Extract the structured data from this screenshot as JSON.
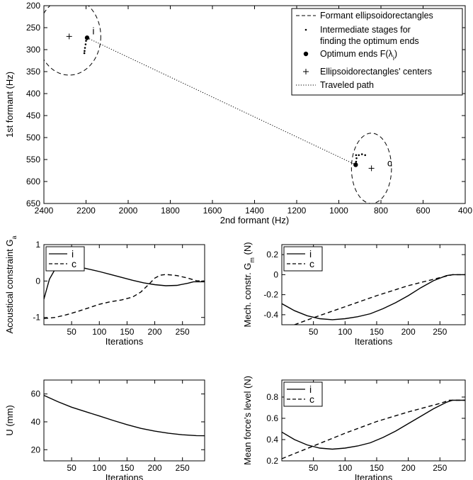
{
  "chart_data": [
    {
      "type": "line",
      "xlabel": "2nd  formant (Hz)",
      "ylabel": "1st  formant (Hz)",
      "xlim": [
        2400,
        400
      ],
      "ylim": [
        200,
        650
      ],
      "y_reversed": true,
      "x_ticks": [
        "2400",
        "2200",
        "2000",
        "1800",
        "1600",
        "1400",
        "1200",
        "1000",
        "800",
        "600",
        "400"
      ],
      "y_ticks": [
        "200",
        "250",
        "300",
        "350",
        "400",
        "450",
        "500",
        "550",
        "600",
        "650"
      ],
      "legend": {
        "placement": "top-right",
        "entries": [
          {
            "text": "Formant ellipsoidorectangles",
            "style": "dashed"
          },
          {
            "text": "Intermediate stages for",
            "text2": "finding the optimum ends",
            "style": "dot"
          },
          {
            "text": "Optimum ends F(λ",
            "sub": "i",
            "tail": ")",
            "style": "filled-circle"
          },
          {
            "text": "Ellipsoidorectangles' centers",
            "style": "plus"
          },
          {
            "text": "Traveled path",
            "style": "dotted"
          }
        ]
      },
      "annotations": [
        {
          "text": "i",
          "x": 2170,
          "y": 265
        },
        {
          "text": "c",
          "x": 770,
          "y": 565
        }
      ],
      "ellipses": [
        {
          "name": "i",
          "center": [
            2280,
            270
          ],
          "rx": 150,
          "ry": 88
        },
        {
          "name": "c",
          "center": [
            845,
            570
          ],
          "rx": 95,
          "ry": 80
        }
      ],
      "centers": [
        [
          2280,
          270
        ],
        [
          845,
          570
        ]
      ],
      "optimum_ends": [
        [
          2195,
          273
        ],
        [
          920,
          562
        ]
      ],
      "traveled_path": [
        [
          2195,
          273
        ],
        [
          920,
          562
        ]
      ],
      "intermediate_i": [
        [
          2195,
          273
        ],
        [
          2200,
          280
        ],
        [
          2202,
          288
        ],
        [
          2205,
          296
        ],
        [
          2207,
          303
        ],
        [
          2208,
          308
        ]
      ],
      "intermediate_c": [
        [
          920,
          562
        ],
        [
          918,
          555
        ],
        [
          916,
          547
        ],
        [
          918,
          540
        ],
        [
          905,
          540
        ],
        [
          890,
          538
        ],
        [
          875,
          540
        ]
      ]
    },
    {
      "type": "line",
      "xlabel": "Iterations",
      "ylabel": "Acoustical constraint G",
      "ylabel_sub": "a",
      "xlim": [
        0,
        290
      ],
      "ylim": [
        -1.2,
        1.0
      ],
      "x_ticks": [
        "50",
        "100",
        "150",
        "200",
        "250"
      ],
      "y_ticks": [
        "-1",
        "0",
        "1"
      ],
      "y_tick_values": [
        -1,
        0,
        1
      ],
      "legend": {
        "placement": "top-left",
        "entries": [
          {
            "text": "i",
            "style": "solid"
          },
          {
            "text": "c",
            "style": "dashed"
          }
        ]
      },
      "series": [
        {
          "name": "i",
          "style": "solid",
          "x": [
            0,
            10,
            20,
            30,
            40,
            60,
            80,
            100,
            120,
            140,
            160,
            180,
            200,
            220,
            240,
            260,
            270,
            280,
            290
          ],
          "y": [
            -0.5,
            0.05,
            0.32,
            0.42,
            0.44,
            0.4,
            0.33,
            0.26,
            0.18,
            0.1,
            0.02,
            -0.05,
            -0.1,
            -0.13,
            -0.12,
            -0.06,
            -0.02,
            -0.02,
            -0.02
          ]
        },
        {
          "name": "c",
          "style": "dashed",
          "x": [
            0,
            20,
            40,
            60,
            80,
            100,
            120,
            140,
            160,
            175,
            190,
            200,
            210,
            220,
            240,
            260,
            275,
            290
          ],
          "y": [
            -1.03,
            -1.0,
            -0.93,
            -0.84,
            -0.74,
            -0.64,
            -0.57,
            -0.52,
            -0.44,
            -0.3,
            -0.08,
            0.08,
            0.16,
            0.18,
            0.15,
            0.08,
            0.01,
            0.0
          ]
        }
      ]
    },
    {
      "type": "line",
      "xlabel": "Iterations",
      "ylabel": "Mech. constr. G",
      "ylabel_sub": "m",
      "ylabel_tail": " (N)",
      "xlim": [
        0,
        290
      ],
      "ylim": [
        -0.5,
        0.3
      ],
      "x_ticks": [
        "50",
        "100",
        "150",
        "200",
        "250"
      ],
      "y_ticks": [
        "-0.4",
        "-0.2",
        "0",
        "0.2"
      ],
      "y_tick_values": [
        -0.4,
        -0.2,
        0,
        0.2
      ],
      "legend": {
        "placement": "top-left",
        "entries": [
          {
            "text": "i",
            "style": "solid"
          },
          {
            "text": "c",
            "style": "dashed"
          }
        ]
      },
      "series": [
        {
          "name": "i",
          "style": "solid",
          "x": [
            0,
            20,
            40,
            60,
            80,
            100,
            120,
            140,
            160,
            180,
            200,
            220,
            240,
            260,
            270,
            280,
            290
          ],
          "y": [
            -0.29,
            -0.36,
            -0.41,
            -0.44,
            -0.45,
            -0.44,
            -0.42,
            -0.39,
            -0.34,
            -0.28,
            -0.21,
            -0.13,
            -0.06,
            -0.01,
            0.0,
            0.0,
            0.0
          ]
        },
        {
          "name": "c",
          "style": "dashed",
          "x": [
            20,
            50,
            100,
            150,
            200,
            250,
            270,
            290
          ],
          "y": [
            -0.5,
            -0.43,
            -0.32,
            -0.21,
            -0.11,
            -0.03,
            0.0,
            0.0
          ]
        }
      ]
    },
    {
      "type": "line",
      "xlabel": "Iterations",
      "ylabel": "U (mm)",
      "xlim": [
        0,
        290
      ],
      "ylim": [
        12,
        70
      ],
      "x_ticks": [
        "50",
        "100",
        "150",
        "200",
        "250"
      ],
      "y_ticks": [
        "20",
        "40",
        "60"
      ],
      "y_tick_values": [
        20,
        40,
        60
      ],
      "series": [
        {
          "name": "",
          "style": "solid",
          "x": [
            0,
            25,
            50,
            75,
            100,
            125,
            150,
            175,
            200,
            225,
            250,
            275,
            290
          ],
          "y": [
            59,
            54.5,
            50.5,
            47.3,
            44.2,
            41.0,
            38.0,
            35.3,
            33.3,
            31.8,
            30.7,
            30.1,
            30.0
          ]
        }
      ]
    },
    {
      "type": "line",
      "xlabel": "Iterations",
      "ylabel": "Mean force's level (N)",
      "xlim": [
        0,
        290
      ],
      "ylim": [
        0.2,
        0.96
      ],
      "x_ticks": [
        "50",
        "100",
        "150",
        "200",
        "250"
      ],
      "y_ticks": [
        "0.2",
        "0.4",
        "0.6",
        "0.8"
      ],
      "y_tick_values": [
        0.2,
        0.4,
        0.6,
        0.8
      ],
      "legend": {
        "placement": "top-left",
        "entries": [
          {
            "text": "i",
            "style": "solid"
          },
          {
            "text": "c",
            "style": "dashed"
          }
        ]
      },
      "series": [
        {
          "name": "i",
          "style": "solid",
          "x": [
            0,
            20,
            40,
            60,
            80,
            100,
            120,
            140,
            160,
            180,
            200,
            220,
            240,
            260,
            270,
            280,
            290
          ],
          "y": [
            0.47,
            0.4,
            0.35,
            0.32,
            0.31,
            0.32,
            0.34,
            0.37,
            0.42,
            0.48,
            0.55,
            0.62,
            0.69,
            0.75,
            0.77,
            0.77,
            0.77
          ]
        },
        {
          "name": "c",
          "style": "dashed",
          "x": [
            0,
            50,
            100,
            150,
            200,
            250,
            265,
            290
          ],
          "y": [
            0.22,
            0.34,
            0.46,
            0.57,
            0.66,
            0.74,
            0.77,
            0.77
          ]
        }
      ]
    }
  ]
}
